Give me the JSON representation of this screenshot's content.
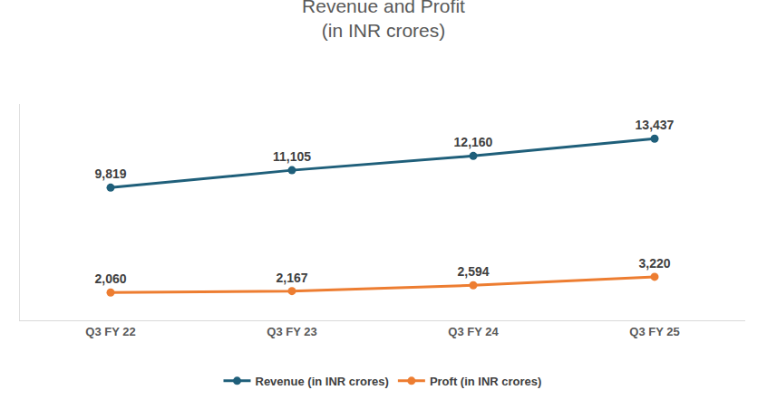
{
  "chart_data": {
    "type": "line",
    "title": "Revenue and Profit\n(in INR crores)",
    "categories": [
      "Q3 FY 22",
      "Q3 FY 23",
      "Q3 FY 24",
      "Q3 FY 25"
    ],
    "series": [
      {
        "name": "Revenue (in INR crores)",
        "color": "#1f5f7a",
        "marker": "circle",
        "line_style": "solid",
        "values": [
          9819,
          11105,
          12160,
          13437
        ],
        "value_labels": [
          "9,819",
          "11,105",
          "12,160",
          "13,437"
        ]
      },
      {
        "name": "Proft (in INR crores)",
        "color": "#ed7d31",
        "marker": "circle",
        "line_style": "solid",
        "values": [
          2060,
          2167,
          2594,
          3220
        ],
        "value_labels": [
          "2,060",
          "2,167",
          "2,594",
          "3,220"
        ]
      }
    ],
    "ylim": [
      0,
      16000
    ],
    "grid": false,
    "data_labels": true,
    "tick_labels": "x",
    "legend": "bottom"
  }
}
